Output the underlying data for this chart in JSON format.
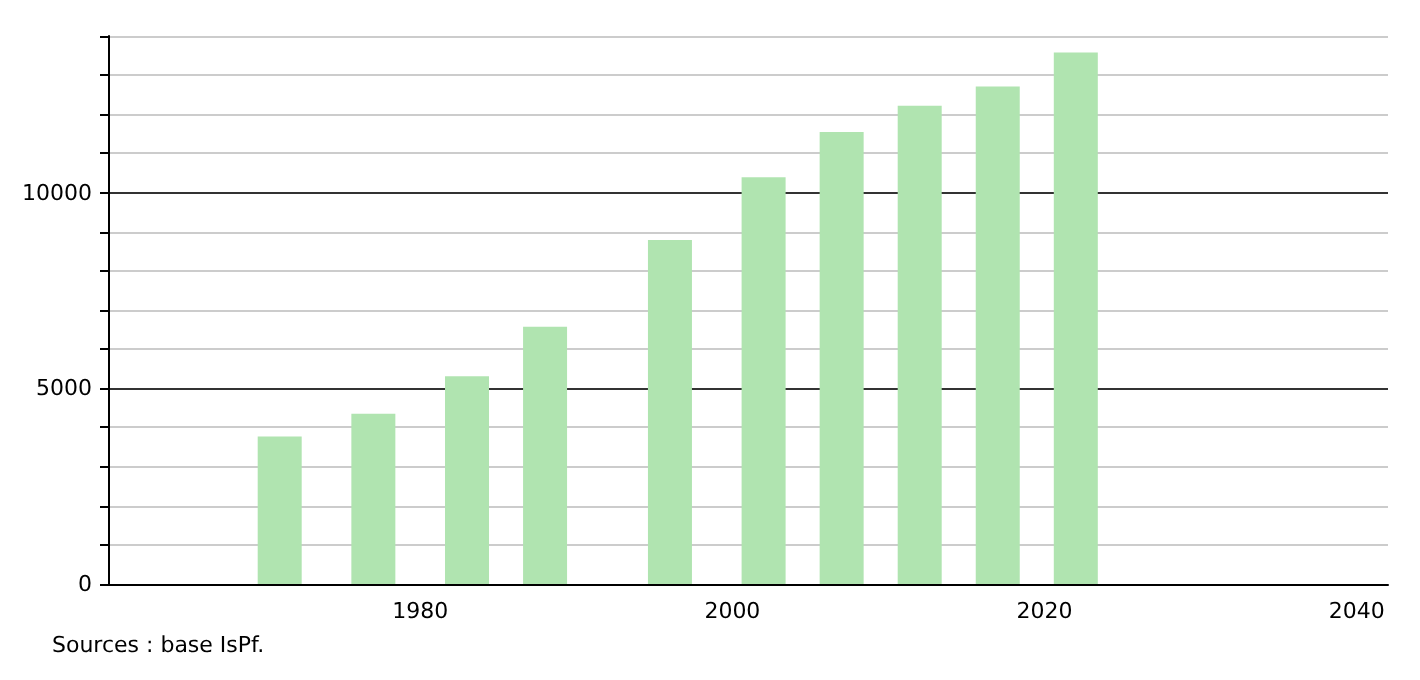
{
  "chart_data": {
    "type": "bar",
    "x": [
      1971,
      1977,
      1983,
      1988,
      1996,
      2002,
      2007,
      2012,
      2017,
      2022
    ],
    "values": [
      3770,
      4350,
      5310,
      6570,
      8790,
      10390,
      11550,
      12220,
      12710,
      13580
    ],
    "color": "#b0e4b0",
    "xlim": [
      1960,
      2042
    ],
    "xticks": [
      1980,
      2000,
      2020,
      2040
    ],
    "ylim": [
      0,
      14000
    ],
    "yticks": [
      0,
      {
        "value": 1000,
        "label": null
      },
      {
        "value": 2000,
        "label": null
      },
      {
        "value": 3000,
        "label": null
      },
      {
        "value": 4000,
        "label": null
      },
      5000,
      {
        "value": 6000,
        "label": null
      },
      {
        "value": 7000,
        "label": null
      },
      {
        "value": 8000,
        "label": null
      },
      {
        "value": 9000,
        "label": null
      },
      10000,
      {
        "value": 11000,
        "label": null
      },
      {
        "value": 12000,
        "label": null
      },
      {
        "value": 13000,
        "label": null
      },
      {
        "value": 14000,
        "label": null
      }
    ],
    "grid": "y",
    "annotations": [
      "Sources : base IsPf."
    ]
  }
}
